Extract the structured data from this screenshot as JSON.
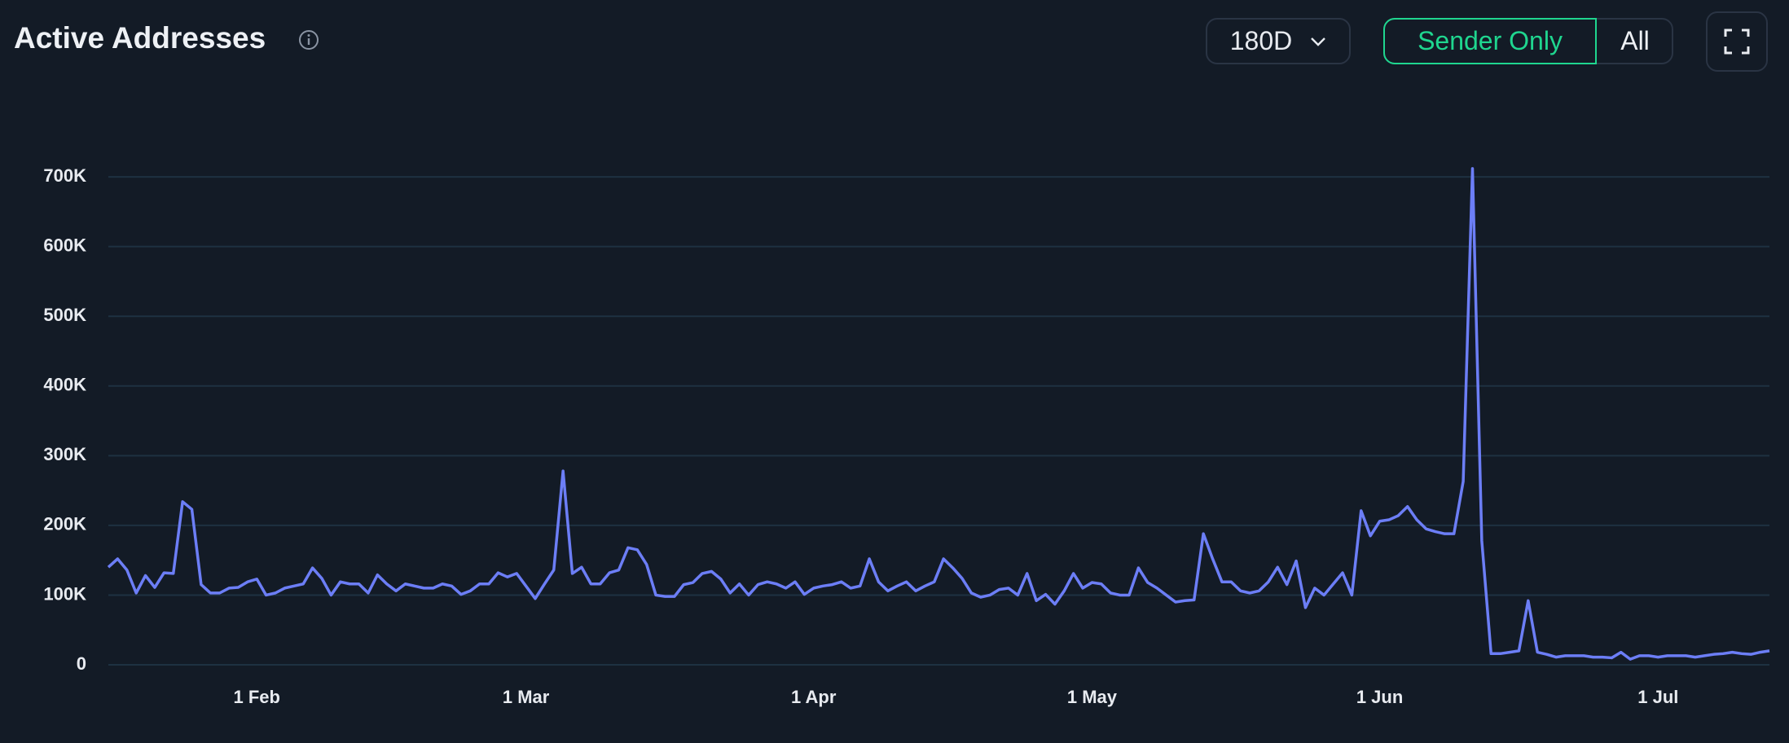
{
  "chart_data": {
    "type": "line",
    "title": "Active Addresses",
    "categories": [
      null,
      null,
      null,
      null,
      null,
      null,
      null,
      null,
      null,
      null,
      null,
      null,
      null,
      null,
      null,
      null,
      "1 Feb",
      null,
      null,
      null,
      null,
      null,
      null,
      null,
      null,
      null,
      null,
      null,
      null,
      null,
      null,
      null,
      null,
      null,
      null,
      null,
      null,
      null,
      null,
      null,
      null,
      null,
      null,
      null,
      null,
      "1 Mar",
      null,
      null,
      null,
      null,
      null,
      null,
      null,
      null,
      null,
      null,
      null,
      null,
      null,
      null,
      null,
      null,
      null,
      null,
      null,
      null,
      null,
      null,
      null,
      null,
      null,
      null,
      null,
      null,
      null,
      null,
      "1 Apr",
      null,
      null,
      null,
      null,
      null,
      null,
      null,
      null,
      null,
      null,
      null,
      null,
      null,
      null,
      null,
      null,
      null,
      null,
      null,
      null,
      null,
      null,
      null,
      null,
      null,
      null,
      null,
      null,
      null,
      "1 May",
      null,
      null,
      null,
      null,
      null,
      null,
      null,
      null,
      null,
      null,
      null,
      null,
      null,
      null,
      null,
      null,
      null,
      null,
      null,
      null,
      null,
      null,
      null,
      null,
      null,
      null,
      null,
      null,
      null,
      null,
      "1 Jun",
      null,
      null,
      null,
      null,
      null,
      null,
      null,
      null,
      null,
      null,
      null,
      null,
      null,
      null,
      null,
      null,
      null,
      null,
      null,
      null,
      null,
      null,
      null,
      null,
      null,
      null,
      null,
      null,
      null,
      "1 Jul",
      null,
      null,
      null,
      null,
      null,
      null,
      null,
      null,
      null,
      null,
      null,
      null
    ],
    "values": [
      140000,
      152000,
      136000,
      103000,
      128000,
      111000,
      132000,
      131000,
      234000,
      223000,
      115000,
      103000,
      103000,
      110000,
      111000,
      119000,
      123000,
      100000,
      103000,
      110000,
      113000,
      116000,
      139000,
      124000,
      100000,
      119000,
      116000,
      116000,
      103000,
      129000,
      116000,
      106000,
      116000,
      113000,
      110000,
      110000,
      116000,
      113000,
      101000,
      106000,
      116000,
      116000,
      132000,
      126000,
      131000,
      113000,
      95000,
      116000,
      136000,
      278000,
      131000,
      140000,
      116000,
      116000,
      132000,
      136000,
      168000,
      165000,
      144000,
      100000,
      98000,
      98000,
      115000,
      118000,
      131000,
      134000,
      123000,
      103000,
      116000,
      100000,
      115000,
      119000,
      116000,
      110000,
      119000,
      101000,
      110000,
      113000,
      115000,
      119000,
      110000,
      113000,
      152000,
      119000,
      106000,
      113000,
      119000,
      106000,
      113000,
      119000,
      152000,
      139000,
      124000,
      103000,
      97000,
      100000,
      108000,
      110000,
      100000,
      131000,
      92000,
      101000,
      87000,
      106000,
      131000,
      110000,
      118000,
      116000,
      103000,
      100000,
      100000,
      139000,
      118000,
      110000,
      100000,
      90000,
      92000,
      93000,
      188000,
      152000,
      119000,
      119000,
      106000,
      103000,
      106000,
      119000,
      140000,
      115000,
      149000,
      82000,
      110000,
      100000,
      116000,
      132000,
      100000,
      221000,
      185000,
      206000,
      208000,
      214000,
      227000,
      208000,
      195000,
      191000,
      188000,
      188000,
      263000,
      712000,
      178000,
      16000,
      16000,
      18000,
      20000,
      92000,
      18000,
      15000,
      11000,
      13000,
      13000,
      13000,
      11000,
      11000,
      10000,
      18000,
      8000,
      13000,
      13000,
      11000,
      13000,
      13000,
      13000,
      11000,
      13000,
      15000,
      16000,
      18000,
      16000,
      15000,
      18000,
      20000
    ],
    "color": "#6c7ef6",
    "ylim": [
      0,
      720000
    ],
    "yticks": [
      0,
      {
        "value": 100000,
        "label": "100K"
      },
      {
        "value": 200000,
        "label": "200K"
      },
      {
        "value": 300000,
        "label": "300K"
      },
      {
        "value": 400000,
        "label": "400K"
      },
      {
        "value": 500000,
        "label": "500K"
      },
      {
        "value": 600000,
        "label": "600K"
      },
      {
        "value": 700000,
        "label": "700K"
      }
    ],
    "grid": true
  },
  "controls": {
    "range": "180D",
    "toggle": [
      "Sender Only",
      "All"
    ]
  }
}
